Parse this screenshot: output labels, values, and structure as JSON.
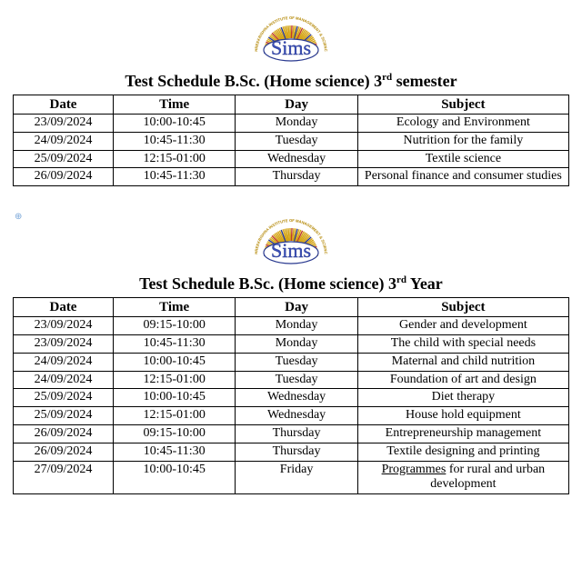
{
  "logo": {
    "text": "Sims",
    "arc_top": "SHREEKRISHNA INSTITUTE OF MANAGEMENT & SCIENCE",
    "colors": {
      "text_fill": "#3a4fb8",
      "text_stroke": "#2a3a90",
      "arc_text": "#b38600",
      "spoke_base": "#d4a414",
      "spoke_alt": "#c23a2a",
      "spoke_dark": "#2a3a90"
    }
  },
  "tables": [
    {
      "title_prefix": "Test Schedule B.Sc. (Home science)  3",
      "title_ord": "rd",
      "title_suffix": " semester",
      "columns": [
        "Date",
        "Time",
        "Day",
        "Subject"
      ],
      "rows": [
        [
          "23/09/2024",
          "10:00-10:45",
          "Monday",
          "Ecology and Environment"
        ],
        [
          "24/09/2024",
          "10:45-11:30",
          "Tuesday",
          "Nutrition for the family"
        ],
        [
          "25/09/2024",
          "12:15-01:00",
          "Wednesday",
          "Textile science"
        ],
        [
          "26/09/2024",
          "10:45-11:30",
          "Thursday",
          "Personal finance and consumer studies"
        ]
      ]
    },
    {
      "title_prefix": "Test Schedule B.Sc. (Home science)  3",
      "title_ord": "rd",
      "title_suffix": " Year",
      "columns": [
        "Date",
        "Time",
        "Day",
        "Subject"
      ],
      "rows": [
        [
          "23/09/2024",
          "09:15-10:00",
          "Monday",
          "Gender and development"
        ],
        [
          "23/09/2024",
          "10:45-11:30",
          "Monday",
          "The child with special needs"
        ],
        [
          "24/09/2024",
          "10:00-10:45",
          "Tuesday",
          "Maternal and child nutrition"
        ],
        [
          "24/09/2024",
          "12:15-01:00",
          "Tuesday",
          "Foundation of art and design"
        ],
        [
          "25/09/2024",
          "10:00-10:45",
          "Wednesday",
          "Diet therapy"
        ],
        [
          "25/09/2024",
          "12:15-01:00",
          "Wednesday",
          "House hold equipment"
        ],
        [
          "26/09/2024",
          "09:15-10:00",
          "Thursday",
          "Entrepreneurship management"
        ],
        [
          "26/09/2024",
          "10:45-11:30",
          "Thursday",
          "Textile designing and printing"
        ],
        [
          "27/09/2024",
          "10:00-10:45",
          "Friday",
          "Programmes for rural and urban development",
          true
        ]
      ]
    }
  ]
}
